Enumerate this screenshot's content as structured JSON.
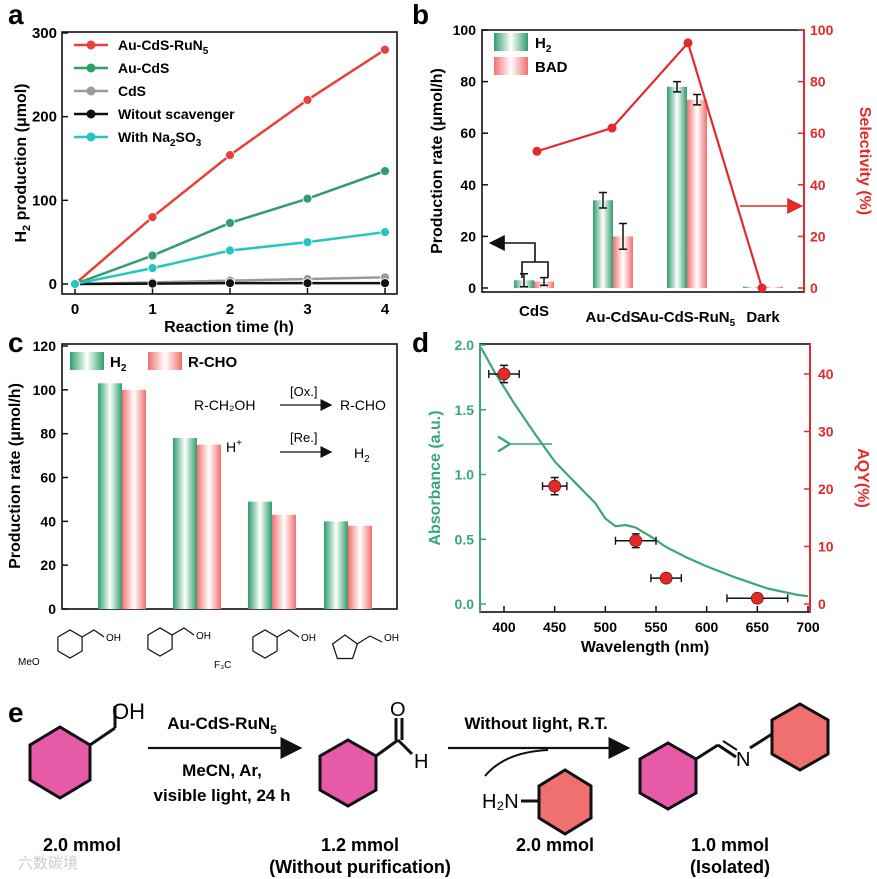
{
  "colors": {
    "red": "#e8403a",
    "green": "#2e9e6b",
    "gray": "#9a9a9a",
    "black": "#111111",
    "cyan": "#27c4c4",
    "pink": "#e65aa8",
    "salmon": "#f07070",
    "axis_red": "#e22a2a",
    "abs_green": "#3aa67d"
  },
  "panel_labels": {
    "a": "a",
    "b": "b",
    "c": "c",
    "d": "d",
    "e": "e"
  },
  "chart_data": [
    {
      "id": "a",
      "type": "line",
      "xlabel": "Reaction time (h)",
      "ylabel": "H2 production (μmol)",
      "ylabel_main": "H",
      "ylabel_sub": "2",
      "ylabel_rest": " production (μmol)",
      "xlim": [
        0,
        4
      ],
      "ylim": [
        0,
        300
      ],
      "xticks": [
        "0",
        "1",
        "2",
        "3",
        "4"
      ],
      "yticks": [
        "0",
        "100",
        "200",
        "300"
      ],
      "x": [
        0,
        1,
        2,
        3,
        4
      ],
      "series": [
        {
          "name": "Au-CdS-RuN5",
          "label_main": "Au-CdS-RuN",
          "label_sub": "5",
          "color": "#e8403a",
          "values": [
            0,
            80,
            154,
            220,
            280
          ]
        },
        {
          "name": "Au-CdS",
          "label_main": "Au-CdS",
          "label_sub": "",
          "color": "#2e9e6b",
          "values": [
            0,
            34,
            73,
            102,
            135
          ]
        },
        {
          "name": "CdS",
          "label_main": "CdS",
          "label_sub": "",
          "color": "#9a9a9a",
          "values": [
            0,
            2,
            4,
            6,
            8
          ]
        },
        {
          "name": "Witout scavenger",
          "label_main": "Witout scavenger",
          "label_sub": "",
          "color": "#111111",
          "values": [
            0,
            0.5,
            1,
            1,
            1
          ]
        },
        {
          "name": "With Na2SO3",
          "label_main": "With Na",
          "label_sub": "2",
          "label_rest": "SO",
          "label_sub2": "3",
          "color": "#27c4c4",
          "values": [
            0,
            19,
            40,
            50,
            62
          ]
        }
      ]
    },
    {
      "id": "b",
      "type": "bar",
      "categories": [
        "CdS",
        "Au-CdS",
        "Au-CdS-RuN5",
        "Dark"
      ],
      "category_labels": [
        {
          "main": "CdS",
          "sub": ""
        },
        {
          "main": "Au-CdS",
          "sub": ""
        },
        {
          "main": "Au-CdS-RuN",
          "sub": "5"
        },
        {
          "main": "Dark",
          "sub": ""
        }
      ],
      "ylabel": "Production rate (μmol/h)",
      "y2label": "Selectivity (%)",
      "ylim": [
        0,
        100
      ],
      "y2lim": [
        0,
        100
      ],
      "yticks": [
        "0",
        "20",
        "40",
        "60",
        "80",
        "100"
      ],
      "y2ticks": [
        "0",
        "20",
        "40",
        "60",
        "80",
        "100"
      ],
      "series": [
        {
          "name": "H2",
          "label_main": "H",
          "label_sub": "2",
          "values": [
            3,
            34,
            78,
            0.5
          ],
          "errors": [
            2.5,
            3,
            2,
            0
          ]
        },
        {
          "name": "BAD",
          "label_main": "BAD",
          "label_sub": "",
          "values": [
            2.5,
            20,
            73,
            0.5
          ],
          "errors": [
            1.5,
            5,
            2,
            0
          ]
        }
      ],
      "selectivity": [
        53,
        62,
        95,
        0
      ]
    },
    {
      "id": "c",
      "type": "bar",
      "categories": [
        "4-methoxybenzyl alcohol",
        "benzyl alcohol",
        "4-(trifluoromethyl)benzyl alcohol",
        "furfuryl alcohol"
      ],
      "ylabel": "Production rate (μmol/h)",
      "ylim": [
        0,
        120
      ],
      "yticks": [
        "0",
        "20",
        "40",
        "60",
        "80",
        "100",
        "120"
      ],
      "series": [
        {
          "name": "H2",
          "label_main": "H",
          "label_sub": "2",
          "values": [
            103,
            78,
            49,
            40
          ]
        },
        {
          "name": "R-CHO",
          "label_main": "R-CHO",
          "label_sub": "",
          "values": [
            100,
            75,
            43,
            38
          ]
        }
      ],
      "molecule_labels": {
        "meo": "MeO",
        "oh": "OH",
        "f3c": "F₃C"
      },
      "scheme": {
        "reactant": "R-CH₂OH",
        "product": "R-CHO",
        "ox": "[Ox.]",
        "re": "[Re.]",
        "proton": "H",
        "proton_sup": "+",
        "h2_main": "H",
        "h2_sub": "2"
      }
    },
    {
      "id": "d",
      "type": "scatter",
      "xlabel": "Wavelength (nm)",
      "ylabel": "Absorbance (a.u.)",
      "y2label": "AQY(%)",
      "xlim": [
        375,
        700
      ],
      "ylim": [
        -0.05,
        2.0
      ],
      "y2lim": [
        -1,
        44
      ],
      "xticks": [
        "400",
        "450",
        "500",
        "550",
        "600",
        "650",
        "700"
      ],
      "yticks": [
        "0.0",
        "0.5",
        "1.0",
        "1.5",
        "2.0"
      ],
      "y2ticks": [
        "0",
        "10",
        "20",
        "30",
        "40"
      ],
      "absorbance": {
        "x": [
          375,
          390,
          410,
          430,
          450,
          470,
          490,
          500,
          510,
          520,
          530,
          545,
          560,
          580,
          600,
          630,
          660,
          690,
          700
        ],
        "y": [
          1.98,
          1.8,
          1.55,
          1.32,
          1.1,
          0.94,
          0.78,
          0.66,
          0.6,
          0.61,
          0.59,
          0.52,
          0.44,
          0.36,
          0.29,
          0.2,
          0.12,
          0.07,
          0.06
        ]
      },
      "aqy": {
        "x": [
          400,
          450,
          530,
          560,
          650
        ],
        "y": [
          40,
          20.5,
          11,
          4.5,
          1
        ],
        "xerr": [
          15,
          12,
          20,
          15,
          30
        ],
        "yerr": [
          1.5,
          1.5,
          1.2,
          0.4,
          0.3
        ]
      }
    }
  ],
  "reaction_e": {
    "oh": "OH",
    "catalyst_main": "Au-CdS-RuN",
    "catalyst_sub": "5",
    "cond1": "MeCN, Ar,",
    "cond2": "visible light, 24 h",
    "o": "O",
    "h": "H",
    "step2": "Without light, R.T.",
    "amine": "H₂N",
    "n": "N",
    "amt1": "2.0 mmol",
    "amt2": "1.2 mmol",
    "amt2b": "(Without purification)",
    "amt3": "2.0 mmol",
    "amt4": "1.0 mmol",
    "amt4b": "(Isolated)"
  },
  "watermark": "六数碳境"
}
